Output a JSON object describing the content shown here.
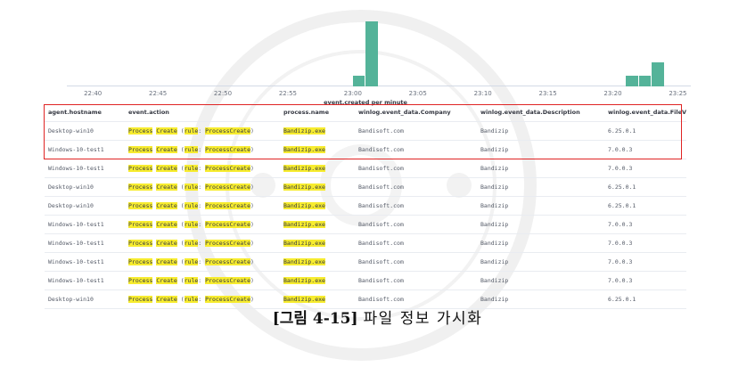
{
  "chart_data": {
    "type": "bar",
    "xlabel": "event.created per minute",
    "tick_labels": [
      "22:40",
      "22:45",
      "22:50",
      "22:55",
      "23:00",
      "23:05",
      "23:10",
      "23:15",
      "23:20",
      "23:25"
    ],
    "x_range": [
      "22:38",
      "23:26"
    ],
    "bars": [
      {
        "time": "23:00",
        "value": 10
      },
      {
        "time": "23:01",
        "value": 62
      },
      {
        "time": "23:21",
        "value": 10
      },
      {
        "time": "23:22",
        "value": 10
      },
      {
        "time": "23:23",
        "value": 23
      }
    ],
    "ylim": [
      0,
      70
    ],
    "color": "#54B399"
  },
  "columns": [
    "agent.hostname",
    "event.action",
    "process.name",
    "winlog.event_data.Company",
    "winlog.event_data.Description",
    "winlog.event_data.FileVersi"
  ],
  "action_parts": {
    "a": "Process",
    "b": "Create",
    "open": " (",
    "rule": "rule",
    "colon": ": ",
    "pc": "ProcessCreate",
    "close": ")"
  },
  "rows": [
    {
      "host": "Desktop-win10",
      "proc": "Bandizip.exe",
      "company": "Bandisoft.com",
      "desc": "Bandizip",
      "ver": "6.25.0.1"
    },
    {
      "host": "Windows-10-test1",
      "proc": "Bandizip.exe",
      "company": "Bandisoft.com",
      "desc": "Bandizip",
      "ver": "7.0.0.3"
    },
    {
      "host": "Windows-10-test1",
      "proc": "Bandizip.exe",
      "company": "Bandisoft.com",
      "desc": "Bandizip",
      "ver": "7.0.0.3"
    },
    {
      "host": "Desktop-win10",
      "proc": "Bandizip.exe",
      "company": "Bandisoft.com",
      "desc": "Bandizip",
      "ver": "6.25.0.1"
    },
    {
      "host": "Desktop-win10",
      "proc": "Bandizip.exe",
      "company": "Bandisoft.com",
      "desc": "Bandizip",
      "ver": "6.25.0.1"
    },
    {
      "host": "Windows-10-test1",
      "proc": "Bandizip.exe",
      "company": "Bandisoft.com",
      "desc": "Bandizip",
      "ver": "7.0.0.3"
    },
    {
      "host": "Windows-10-test1",
      "proc": "Bandizip.exe",
      "company": "Bandisoft.com",
      "desc": "Bandizip",
      "ver": "7.0.0.3"
    },
    {
      "host": "Windows-10-test1",
      "proc": "Bandizip.exe",
      "company": "Bandisoft.com",
      "desc": "Bandizip",
      "ver": "7.0.0.3"
    },
    {
      "host": "Windows-10-test1",
      "proc": "Bandizip.exe",
      "company": "Bandisoft.com",
      "desc": "Bandizip",
      "ver": "7.0.0.3"
    },
    {
      "host": "Desktop-win10",
      "proc": "Bandizip.exe",
      "company": "Bandisoft.com",
      "desc": "Bandizip",
      "ver": "6.25.0.1"
    }
  ],
  "highlighted_rows": 2,
  "caption": {
    "label": "[그림 4-15]",
    "text": "파일 정보 가시화"
  },
  "watermark": {
    "text": "국민대학교 1906",
    "icon": "university-seal"
  }
}
